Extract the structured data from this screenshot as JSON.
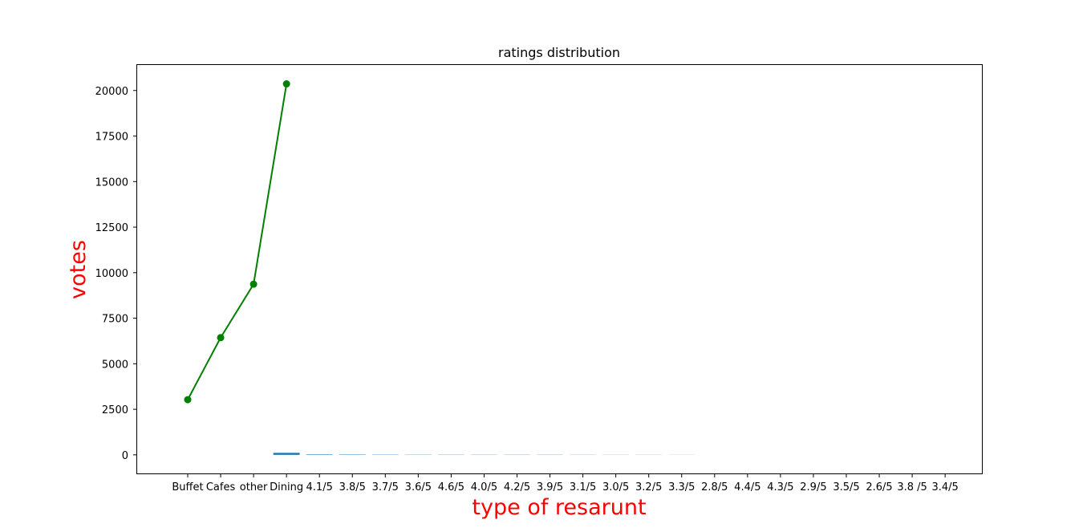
{
  "chart_data": {
    "type": "bar",
    "title": "ratings distribution",
    "xlabel": "type of resarunt",
    "ylabel": "votes",
    "categories": [
      "Buffet",
      "Cafes",
      "other",
      "Dining",
      "4.1/5",
      "3.8/5",
      "3.7/5",
      "3.6/5",
      "4.6/5",
      "4.0/5",
      "4.2/5",
      "3.9/5",
      "3.1/5",
      "3.0/5",
      "3.2/5",
      "3.3/5",
      "2.8/5",
      "4.4/5",
      "4.3/5",
      "2.9/5",
      "3.5/5",
      "2.6/5",
      "3.8 /5",
      "3.4/5"
    ],
    "yticks": [
      0,
      2500,
      5000,
      7500,
      10000,
      12500,
      15000,
      17500,
      20000
    ],
    "ylim": [
      -1020,
      21400
    ],
    "grid": false,
    "series": [
      {
        "type": "line",
        "color": "#008000",
        "marker": "circle",
        "points": [
          {
            "x": "Buffet",
            "y": 3028
          },
          {
            "x": "Cafes",
            "y": 6434
          },
          {
            "x": "other",
            "y": 9367
          },
          {
            "x": "Dining",
            "y": 20363
          }
        ]
      },
      {
        "type": "bar",
        "color": "#1f77b4",
        "points": [
          {
            "x": "Dining",
            "y": 110
          },
          {
            "x": "4.1/5",
            "y": 26
          },
          {
            "x": "3.8/5",
            "y": 20
          },
          {
            "x": "3.7/5",
            "y": 15
          },
          {
            "x": "3.6/5",
            "y": 12
          },
          {
            "x": "4.6/5",
            "y": 11
          },
          {
            "x": "4.0/5",
            "y": 10
          },
          {
            "x": "4.2/5",
            "y": 10
          },
          {
            "x": "3.9/5",
            "y": 10
          },
          {
            "x": "3.1/5",
            "y": 8
          },
          {
            "x": "3.0/5",
            "y": 7
          },
          {
            "x": "3.2/5",
            "y": 6
          },
          {
            "x": "3.3/5",
            "y": 5
          },
          {
            "x": "2.8/5",
            "y": 0
          },
          {
            "x": "4.4/5",
            "y": 0
          },
          {
            "x": "4.3/5",
            "y": 0
          },
          {
            "x": "2.9/5",
            "y": 0
          },
          {
            "x": "3.5/5",
            "y": 0
          },
          {
            "x": "2.6/5",
            "y": 0
          },
          {
            "x": "3.8 /5",
            "y": 0
          },
          {
            "x": "3.4/5",
            "y": 0
          }
        ]
      }
    ]
  }
}
